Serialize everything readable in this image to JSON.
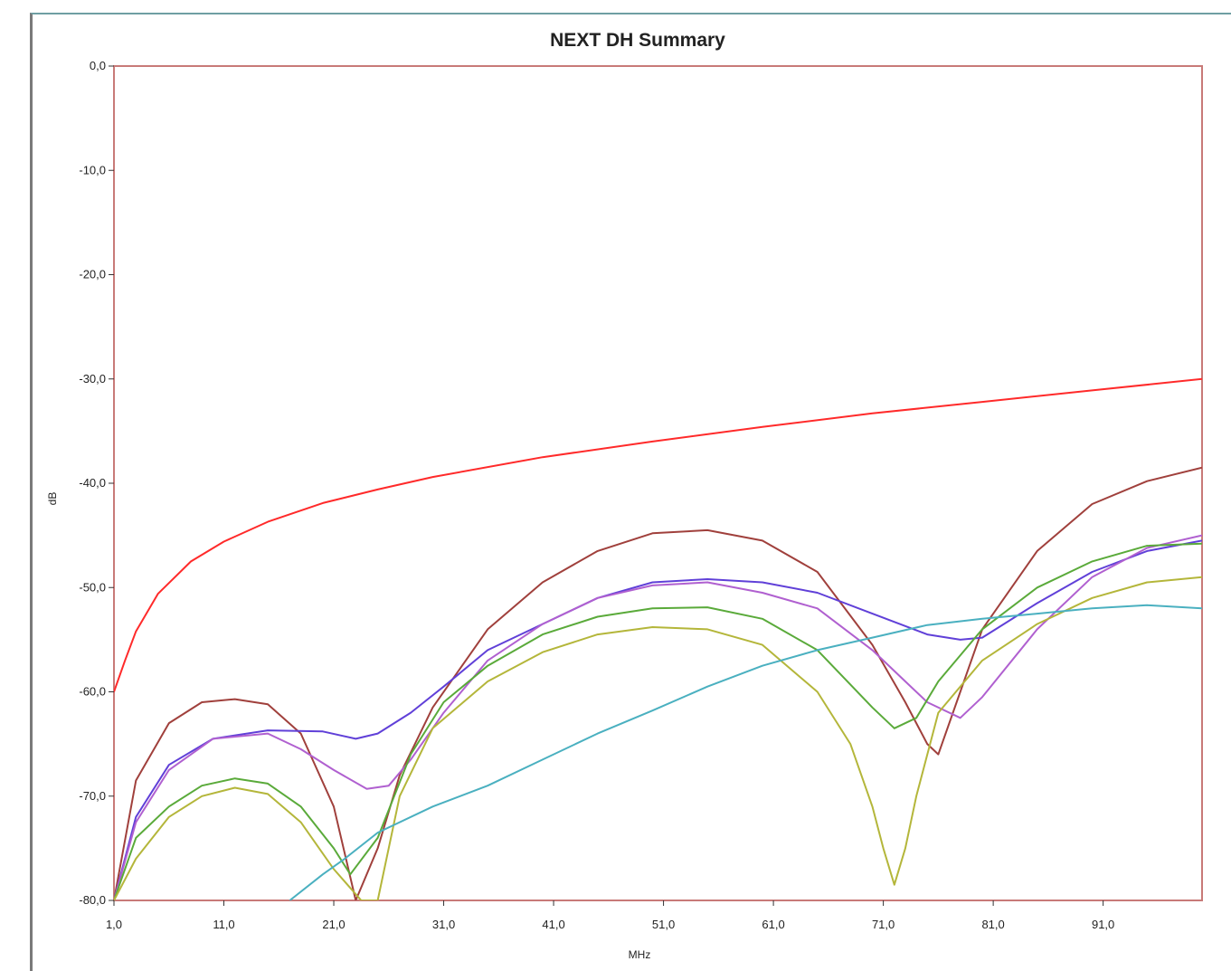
{
  "chart_data": {
    "type": "line",
    "title": "NEXT DH Summary",
    "xlabel": "MHz",
    "ylabel": "dB",
    "xlim": [
      1,
      100
    ],
    "ylim": [
      -80,
      0
    ],
    "xticks": [
      "1,0",
      "11,0",
      "21,0",
      "31,0",
      "41,0",
      "51,0",
      "61,0",
      "71,0",
      "81,0",
      "91,0"
    ],
    "yticks": [
      "0,0",
      "-10,0",
      "-20,0",
      "-30,0",
      "-40,0",
      "-50,0",
      "-60,0",
      "-70,0",
      "-80,0"
    ],
    "grid": false,
    "legend": "none",
    "series": [
      {
        "color": "#ff2a2a",
        "x": [
          1,
          2,
          3,
          5,
          8,
          11,
          15,
          20,
          25,
          30,
          40,
          50,
          60,
          70,
          80,
          90,
          100
        ],
        "y": [
          -60,
          -57,
          -54.2,
          -50.6,
          -47.5,
          -45.6,
          -43.7,
          -41.9,
          -40.6,
          -39.4,
          -37.5,
          -36,
          -34.6,
          -33.3,
          -32.2,
          -31.1,
          -30
        ]
      },
      {
        "color": "#a0403c",
        "x": [
          1,
          3,
          6,
          9,
          12,
          15,
          18,
          21,
          23,
          25,
          27,
          30,
          35,
          40,
          45,
          50,
          55,
          60,
          65,
          70,
          73,
          75,
          76,
          78,
          80,
          85,
          90,
          95,
          100
        ],
        "y": [
          -80,
          -68.5,
          -63,
          -61,
          -60.7,
          -61.2,
          -64,
          -71,
          -80,
          -75,
          -68,
          -61.5,
          -54,
          -49.5,
          -46.5,
          -44.8,
          -44.5,
          -45.5,
          -48.5,
          -55.5,
          -61,
          -65,
          -66,
          -60,
          -54,
          -46.5,
          -42,
          -39.8,
          -38.5
        ]
      },
      {
        "color": "#6040d8",
        "x": [
          1,
          3,
          6,
          10,
          15,
          20,
          23,
          25,
          28,
          31,
          35,
          40,
          45,
          50,
          55,
          60,
          65,
          70,
          75,
          78,
          80,
          85,
          90,
          95,
          100
        ],
        "y": [
          -80,
          -72,
          -67,
          -64.5,
          -63.7,
          -63.8,
          -64.5,
          -64,
          -62,
          -59.5,
          -56,
          -53.5,
          -51,
          -49.5,
          -49.2,
          -49.5,
          -50.5,
          -52.5,
          -54.5,
          -55,
          -54.8,
          -51.5,
          -48.5,
          -46.5,
          -45.5
        ]
      },
      {
        "color": "#b060d0",
        "x": [
          1,
          3,
          6,
          10,
          15,
          18,
          21,
          24,
          26,
          28,
          31,
          35,
          40,
          45,
          50,
          55,
          60,
          65,
          70,
          73,
          75,
          78,
          80,
          85,
          90,
          95,
          100
        ],
        "y": [
          -80,
          -72.5,
          -67.5,
          -64.5,
          -64,
          -65.5,
          -67.5,
          -69.3,
          -69,
          -66.5,
          -62,
          -57,
          -53.5,
          -51,
          -49.8,
          -49.5,
          -50.5,
          -52,
          -56,
          -59,
          -61,
          -62.5,
          -60.5,
          -54,
          -49,
          -46.2,
          -45
        ]
      },
      {
        "color": "#5aaa3a",
        "x": [
          1,
          3,
          6,
          9,
          12,
          15,
          18,
          21,
          22.5,
          25,
          28,
          31,
          35,
          40,
          45,
          50,
          55,
          60,
          65,
          70,
          72,
          74,
          76,
          80,
          85,
          90,
          95,
          100
        ],
        "y": [
          -80,
          -74,
          -71,
          -69,
          -68.3,
          -68.8,
          -71,
          -75,
          -77.5,
          -74,
          -66,
          -61,
          -57.5,
          -54.5,
          -52.8,
          -52,
          -51.9,
          -53,
          -56,
          -61.5,
          -63.5,
          -62.5,
          -59,
          -54,
          -50,
          -47.5,
          -46,
          -45.8
        ]
      },
      {
        "color": "#b4b63a",
        "x": [
          1,
          3,
          6,
          9,
          12,
          15,
          18,
          21,
          23.5,
          25,
          27,
          30,
          35,
          40,
          45,
          50,
          55,
          60,
          65,
          68,
          70,
          71,
          72,
          73,
          74,
          76,
          80,
          85,
          90,
          95,
          100
        ],
        "y": [
          -80,
          -76,
          -72,
          -70,
          -69.2,
          -69.8,
          -72.5,
          -77,
          -80,
          -80,
          -70,
          -63.5,
          -59,
          -56.2,
          -54.5,
          -53.8,
          -54,
          -55.5,
          -60,
          -65,
          -71,
          -75,
          -78.5,
          -75,
          -70,
          -62,
          -57,
          -53.5,
          -51,
          -49.5,
          -49
        ]
      },
      {
        "color": "#4ab0c0",
        "x": [
          17,
          20,
          22,
          25,
          30,
          35,
          40,
          45,
          50,
          55,
          60,
          65,
          70,
          75,
          80,
          85,
          90,
          95,
          100
        ],
        "y": [
          -80,
          -77.5,
          -76,
          -73.5,
          -71,
          -69,
          -66.5,
          -64,
          -61.8,
          -59.5,
          -57.5,
          -56,
          -54.8,
          -53.6,
          -53,
          -52.5,
          -52,
          -51.7,
          -52
        ]
      }
    ]
  }
}
